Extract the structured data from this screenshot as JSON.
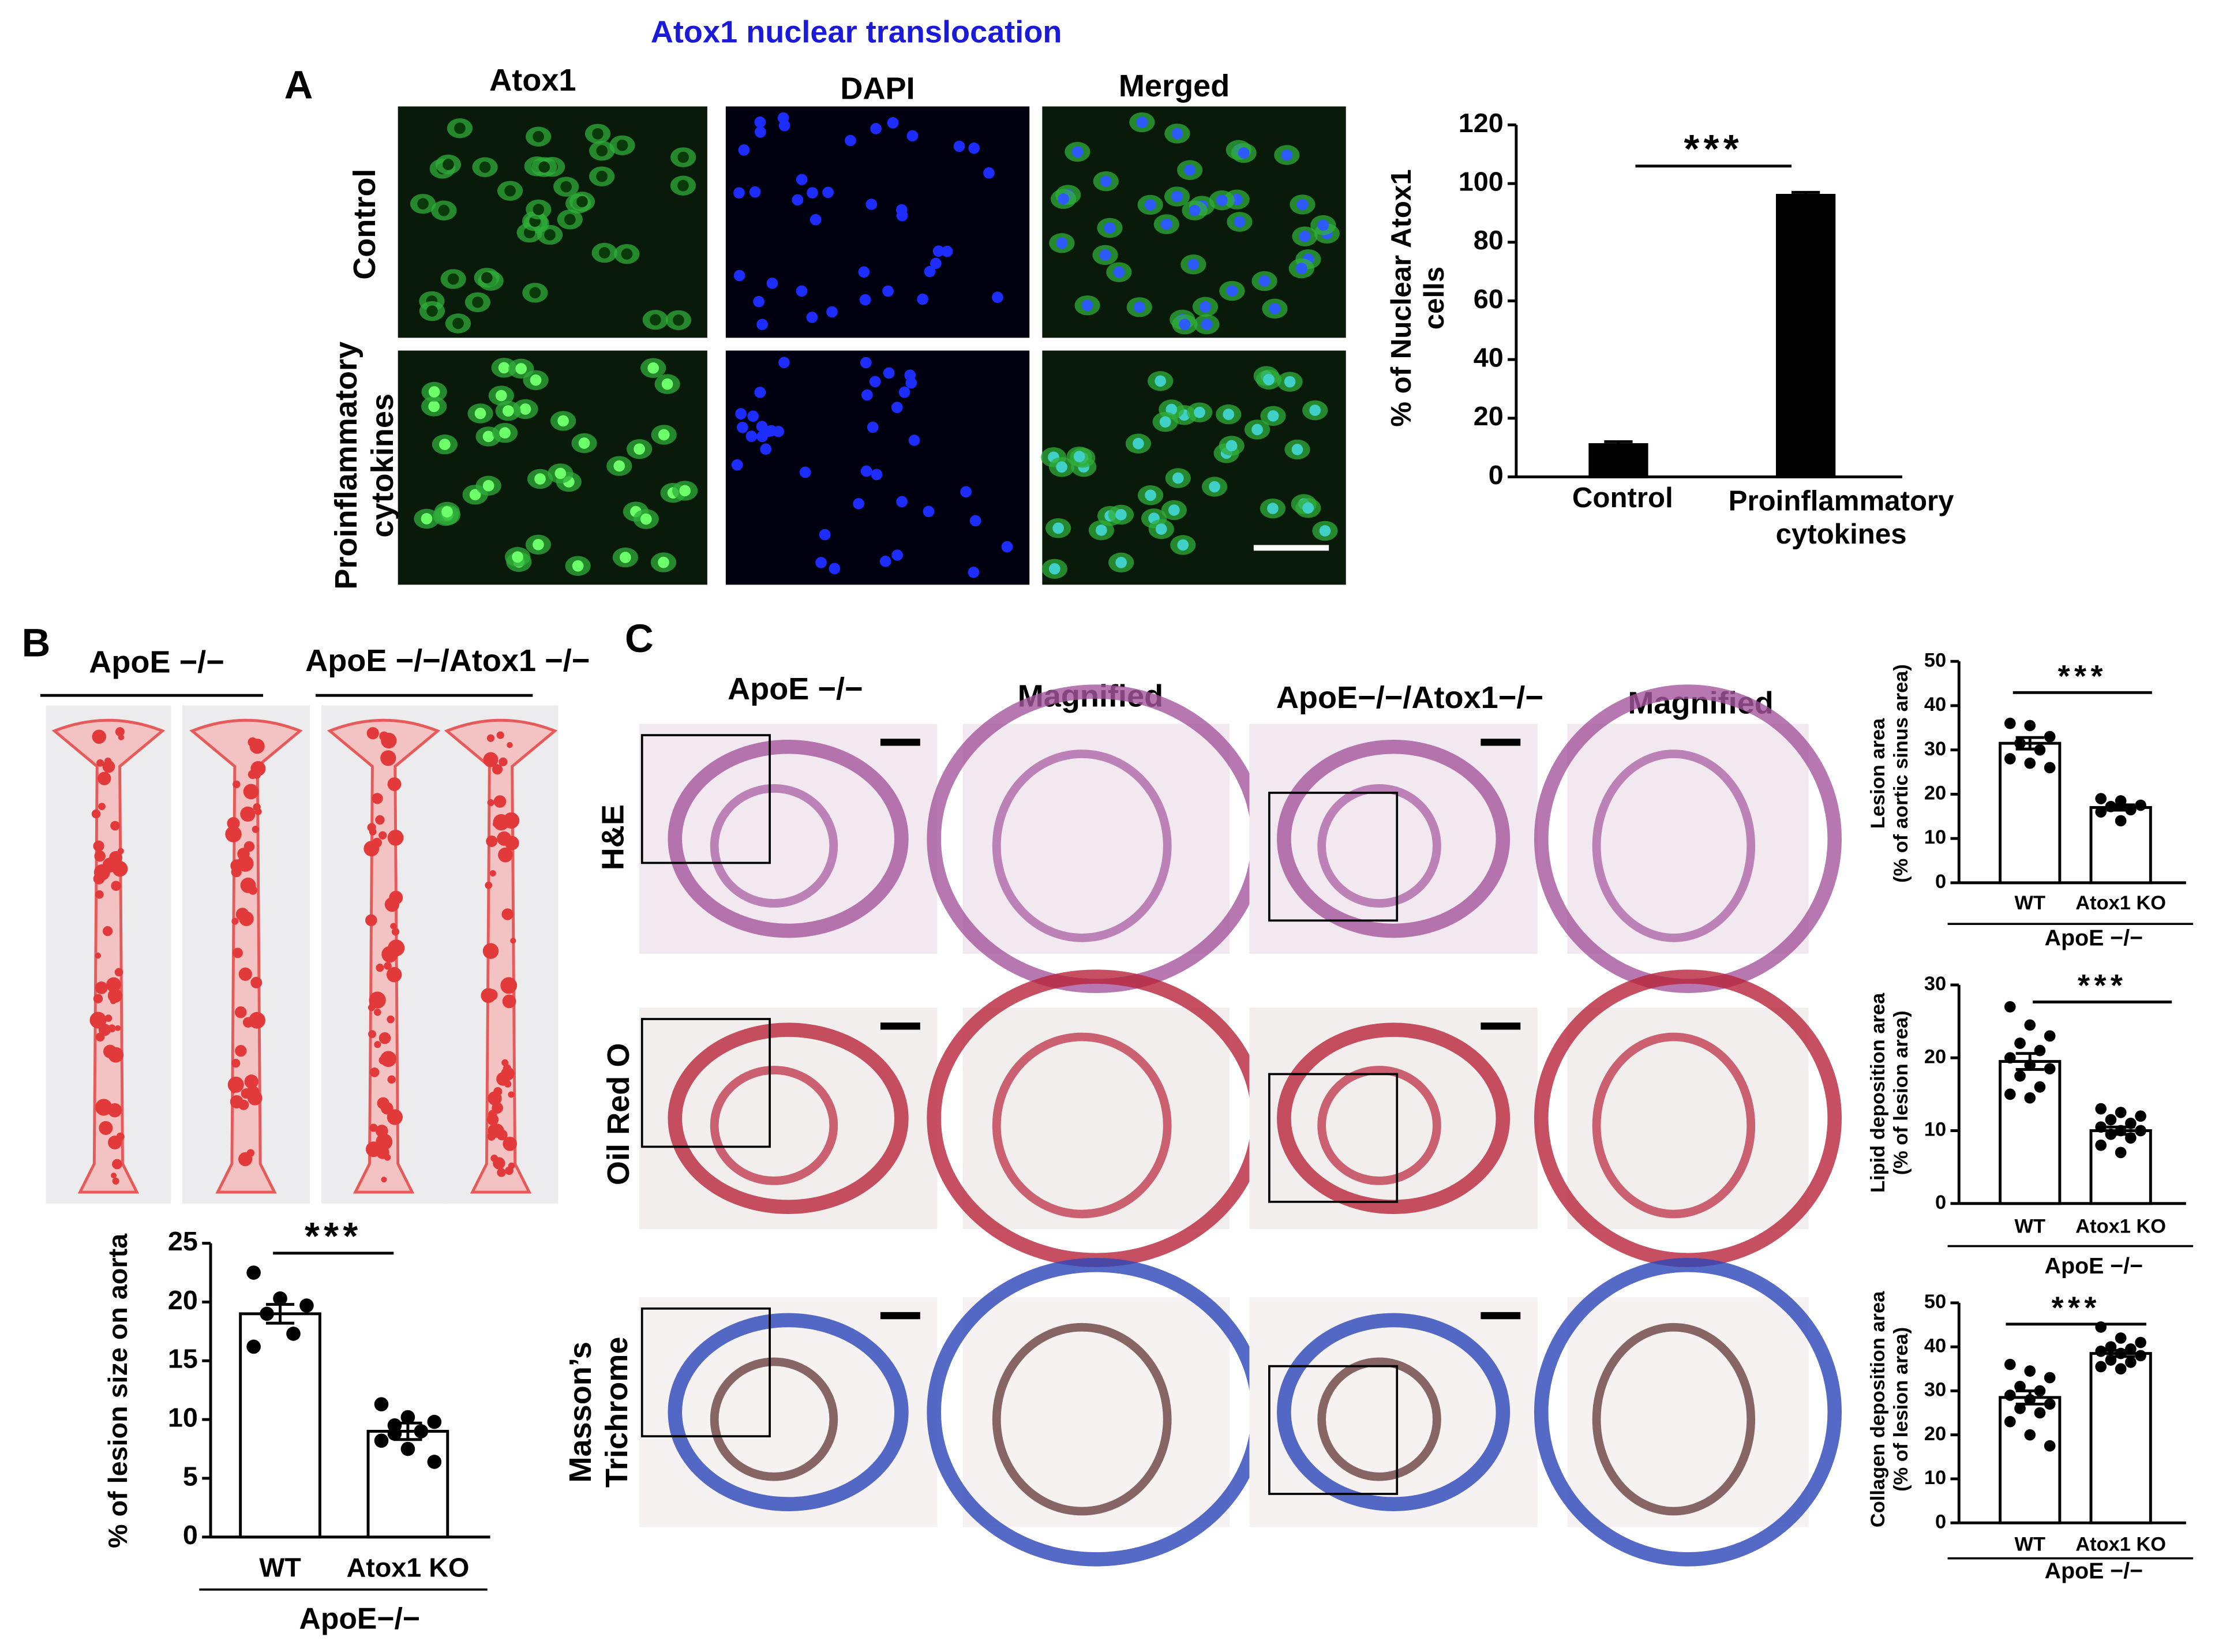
{
  "figure_title": "Atox1 nuclear translocation",
  "panel_labels": [
    "A",
    "B",
    "C"
  ],
  "panel_a": {
    "columns": [
      "Atox1",
      "DAPI",
      "Merged"
    ],
    "rows": [
      "Control",
      "Proinflammatory\ncytokines"
    ]
  },
  "panel_b": {
    "groups": [
      "ApoE −/−",
      "ApoE −/−/Atox1 −/−"
    ]
  },
  "panel_c": {
    "columns": [
      "ApoE −/−",
      "Magnified",
      "ApoE−/−/Atox1−/−",
      "Magnified"
    ],
    "rows": [
      "H&E",
      "Oil Red O",
      "Masson’s\nTrichrome"
    ]
  },
  "chart_data": [
    {
      "type": "bar",
      "categories": [
        "Control",
        "Proinflammatory\ncytokines"
      ],
      "values": [
        11,
        96
      ],
      "errors": [
        1,
        1
      ],
      "color": "#000000",
      "ylabel": "% of Nuclear Atox1\ncells",
      "significance": "***",
      "ylim": [
        0,
        120
      ],
      "yticks": [
        0,
        20,
        40,
        60,
        80,
        100,
        120
      ]
    },
    {
      "type": "bar",
      "categories": [
        "WT",
        "Atox1 KO"
      ],
      "values": [
        19,
        9
      ],
      "errors": [
        0.8,
        0.7
      ],
      "points": [
        [
          22.5,
          20.3,
          19.7,
          19,
          17.3,
          16.2
        ],
        [
          11.3,
          10.2,
          9.8,
          9.5,
          9,
          8.2,
          7.5,
          6.4,
          8.8
        ]
      ],
      "color": "#ffffff",
      "ylabel": "% of lesion size on aorta",
      "group_label": "ApoE−/−",
      "significance": "***",
      "ylim": [
        0,
        25
      ],
      "yticks": [
        0,
        5,
        10,
        15,
        20,
        25
      ]
    },
    {
      "type": "bar",
      "categories": [
        "WT",
        "Atox1 KO"
      ],
      "values": [
        31.5,
        17
      ],
      "errors": [
        1.3,
        0.6
      ],
      "points": [
        [
          36,
          35.5,
          33,
          31.5,
          30,
          28,
          27,
          26
        ],
        [
          19,
          18.5,
          17.5,
          17.2,
          16.5,
          16,
          14
        ]
      ],
      "color": "#ffffff",
      "ylabel": "Lesion area\n(% of aortic sinus area)",
      "group_label": "ApoE −/−",
      "significance": "***",
      "ylim": [
        0,
        50
      ],
      "yticks": [
        0,
        10,
        20,
        30,
        40,
        50
      ]
    },
    {
      "type": "bar",
      "categories": [
        "WT",
        "Atox1 KO"
      ],
      "values": [
        19.5,
        10
      ],
      "errors": [
        1.1,
        0.5
      ],
      "points": [
        [
          27,
          24.5,
          23,
          22,
          21,
          20,
          19,
          18.5,
          17.5,
          16,
          15,
          14.5
        ],
        [
          13,
          12.5,
          12,
          11.5,
          11,
          10.5,
          10,
          10,
          9.5,
          9,
          8,
          7
        ]
      ],
      "color": "#ffffff",
      "ylabel": "Lipid deposition area\n(% of lesion area)",
      "group_label": "ApoE −/−",
      "significance": "***",
      "ylim": [
        0,
        30
      ],
      "yticks": [
        0,
        10,
        20,
        30
      ]
    },
    {
      "type": "bar",
      "categories": [
        "WT",
        "Atox1 KO"
      ],
      "values": [
        28.5,
        38.5
      ],
      "errors": [
        1.5,
        0.7
      ],
      "points": [
        [
          36,
          34.5,
          33,
          31,
          30,
          29,
          28,
          27,
          26,
          25,
          23,
          20,
          17.5
        ],
        [
          44.5,
          42,
          41,
          40,
          39.5,
          39,
          38.5,
          38,
          37,
          36.5,
          35.5,
          35
        ]
      ],
      "color": "#ffffff",
      "ylabel": "Collagen deposition area\n(% of lesion area)",
      "group_label": "ApoE −/−",
      "significance": "***",
      "ylim": [
        0,
        50
      ],
      "yticks": [
        0,
        10,
        20,
        30,
        40,
        50
      ]
    }
  ]
}
